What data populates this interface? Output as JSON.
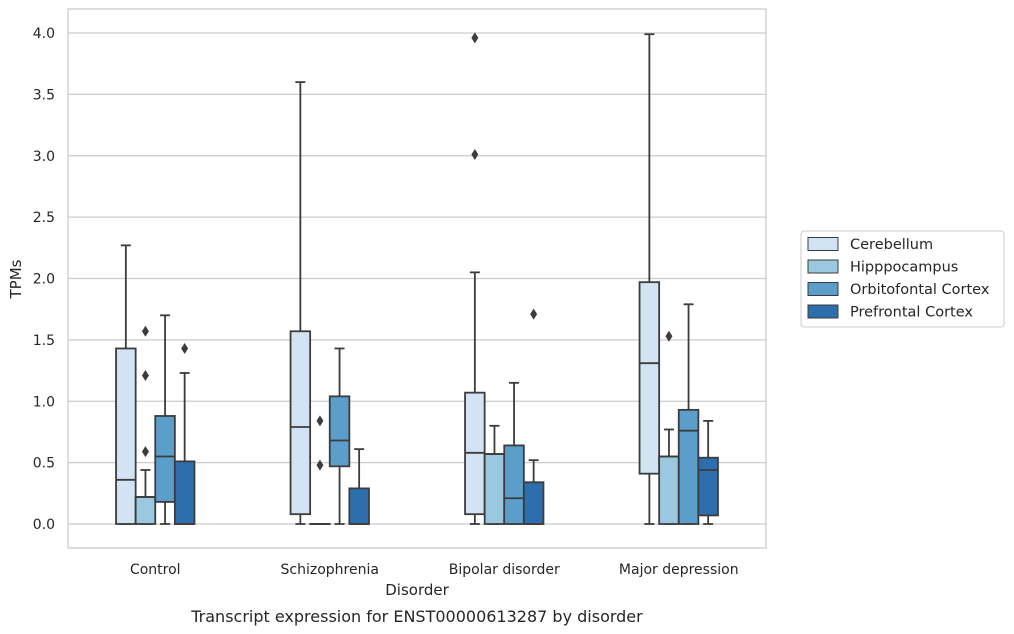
{
  "caption": "Transcript expression for ENST00000613287 by disorder",
  "chart_data": {
    "type": "box",
    "xlabel": "Disorder",
    "ylabel": "TPMs",
    "ylim": [
      -0.19,
      4.2
    ],
    "yticks": [
      0.0,
      0.5,
      1.0,
      1.5,
      2.0,
      2.5,
      3.0,
      3.5,
      4.0
    ],
    "ytick_labels": [
      "0.0",
      "0.5",
      "1.0",
      "1.5",
      "2.0",
      "2.5",
      "3.0",
      "3.5",
      "4.0"
    ],
    "grid": "horizontal",
    "legend_position": "right",
    "categories": [
      "Control",
      "Schizophrenia",
      "Bipolar disorder",
      "Major depression"
    ],
    "series": [
      {
        "name": "Cerebellum",
        "color": "#d2e3f3",
        "boxes": [
          {
            "whisker_low": 0.0,
            "q1": 0.0,
            "median": 0.36,
            "q3": 1.43,
            "whisker_high": 2.27,
            "outliers": []
          },
          {
            "whisker_low": 0.0,
            "q1": 0.08,
            "median": 0.79,
            "q3": 1.57,
            "whisker_high": 3.6,
            "outliers": []
          },
          {
            "whisker_low": 0.0,
            "q1": 0.08,
            "median": 0.58,
            "q3": 1.07,
            "whisker_high": 2.05,
            "outliers": [
              3.01,
              3.96
            ]
          },
          {
            "whisker_low": 0.0,
            "q1": 0.41,
            "median": 1.31,
            "q3": 1.97,
            "whisker_high": 3.99,
            "outliers": []
          }
        ]
      },
      {
        "name": "Hipppocampus",
        "color": "#9ac8e0",
        "boxes": [
          {
            "whisker_low": 0.0,
            "q1": 0.0,
            "median": 0.22,
            "q3": 0.22,
            "whisker_high": 0.44,
            "outliers": [
              0.59,
              1.21,
              1.57
            ]
          },
          {
            "whisker_low": 0.0,
            "q1": 0.0,
            "median": 0.0,
            "q3": 0.0,
            "whisker_high": 0.0,
            "outliers": [
              0.48,
              0.84
            ]
          },
          {
            "whisker_low": 0.0,
            "q1": 0.0,
            "median": 0.57,
            "q3": 0.57,
            "whisker_high": 0.8,
            "outliers": []
          },
          {
            "whisker_low": 0.0,
            "q1": 0.0,
            "median": 0.55,
            "q3": 0.55,
            "whisker_high": 0.77,
            "outliers": [
              1.53
            ]
          }
        ]
      },
      {
        "name": "Orbitofontal Cortex",
        "color": "#5a9ec9",
        "boxes": [
          {
            "whisker_low": 0.0,
            "q1": 0.18,
            "median": 0.55,
            "q3": 0.88,
            "whisker_high": 1.7,
            "outliers": []
          },
          {
            "whisker_low": 0.0,
            "q1": 0.47,
            "median": 0.68,
            "q3": 1.04,
            "whisker_high": 1.43,
            "outliers": []
          },
          {
            "whisker_low": 0.0,
            "q1": 0.0,
            "median": 0.21,
            "q3": 0.64,
            "whisker_high": 1.15,
            "outliers": []
          },
          {
            "whisker_low": 0.0,
            "q1": 0.0,
            "median": 0.76,
            "q3": 0.93,
            "whisker_high": 1.79,
            "outliers": []
          }
        ]
      },
      {
        "name": "Prefrontal Cortex",
        "color": "#2d6fae",
        "boxes": [
          {
            "whisker_low": 0.0,
            "q1": 0.0,
            "median": 0.0,
            "q3": 0.51,
            "whisker_high": 1.23,
            "outliers": [
              1.43
            ]
          },
          {
            "whisker_low": 0.0,
            "q1": 0.0,
            "median": 0.0,
            "q3": 0.29,
            "whisker_high": 0.61,
            "outliers": []
          },
          {
            "whisker_low": 0.0,
            "q1": 0.0,
            "median": 0.0,
            "q3": 0.34,
            "whisker_high": 0.52,
            "outliers": [
              1.71
            ]
          },
          {
            "whisker_low": 0.0,
            "q1": 0.07,
            "median": 0.44,
            "q3": 0.54,
            "whisker_high": 0.84,
            "outliers": []
          }
        ]
      }
    ],
    "colors": {
      "line": "#3c3c3c",
      "grid": "#cccccc",
      "frame": "#cccccc"
    }
  }
}
